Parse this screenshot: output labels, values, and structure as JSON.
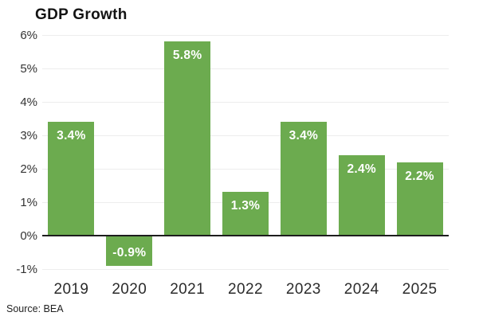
{
  "chart_data": {
    "type": "bar",
    "title": "GDP Growth",
    "categories": [
      "2019",
      "2020",
      "2021",
      "2022",
      "2023",
      "2024",
      "2025"
    ],
    "values": [
      3.4,
      -0.9,
      5.8,
      1.3,
      3.4,
      2.4,
      2.2
    ],
    "value_labels": [
      "3.4%",
      "-0.9%",
      "5.8%",
      "1.3%",
      "3.4%",
      "2.4%",
      "2.2%"
    ],
    "xlabel": "",
    "ylabel": "",
    "ylim": [
      -1,
      6
    ],
    "ytick_step": 1,
    "ytick_labels": [
      "6%",
      "5%",
      "4%",
      "3%",
      "2%",
      "1%",
      "0%",
      "-1%"
    ],
    "grid": true,
    "legend": "none",
    "bar_color": "#6cab4f",
    "value_label_color": "#ffffff",
    "gridline_color": "#ededed",
    "zero_line_color": "#1d1d1d"
  },
  "source_note": "Source: BEA"
}
